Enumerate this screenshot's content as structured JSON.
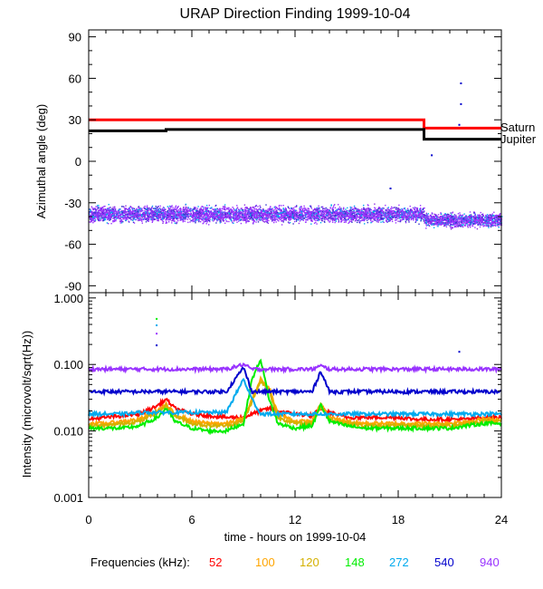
{
  "chart_data": [
    {
      "type": "scatter",
      "title": "URAP Direction Finding  1999-10-04",
      "ylabel": "Azimuthal angle (deg)",
      "xlim": [
        0,
        24
      ],
      "ylim": [
        -95,
        95
      ],
      "yticks": [
        "90",
        "60",
        "30",
        "0",
        "-30",
        "-60",
        "-90"
      ],
      "ytick_values": [
        90,
        60,
        30,
        0,
        -30,
        -60,
        -90
      ],
      "reference_lines": [
        {
          "name": "Saturn",
          "color": "#ff0000",
          "segments": [
            {
              "x": [
                0,
                19.5
              ],
              "y": 30
            },
            {
              "x": [
                19.5,
                24
              ],
              "y": 24
            }
          ]
        },
        {
          "name": "Jupiter",
          "color": "#000000",
          "segments": [
            {
              "x": [
                0,
                4.5
              ],
              "y": 22
            },
            {
              "x": [
                4.5,
                19.5
              ],
              "y": 23
            },
            {
              "x": [
                19.5,
                24
              ],
              "y": 16
            }
          ]
        }
      ],
      "scatter_bands": [
        {
          "x": [
            0,
            19.5
          ],
          "y_center": -38,
          "y_spread": 8
        },
        {
          "x": [
            19.5,
            24
          ],
          "y_center": -42,
          "y_spread": 7
        }
      ],
      "outliers": [
        {
          "x": 21.6,
          "y": 57
        },
        {
          "x": 21.6,
          "y": 42
        },
        {
          "x": 19.9,
          "y": 5
        },
        {
          "x": 21.5,
          "y": 27
        },
        {
          "x": 17.5,
          "y": -19
        }
      ]
    },
    {
      "type": "line",
      "xlabel": "time - hours on 1999-10-04",
      "ylabel": "Intensity (microvolt/sqrt(Hz))",
      "xlim": [
        0,
        24
      ],
      "xticks": [
        "0",
        "6",
        "12",
        "18",
        "24"
      ],
      "xtick_values": [
        0,
        6,
        12,
        18,
        24
      ],
      "yscale": "log",
      "ylim": [
        0.001,
        1.2
      ],
      "yticks": [
        "1.000",
        "0.100",
        "0.010",
        "0.001"
      ],
      "ytick_values": [
        1,
        0.1,
        0.01,
        0.001
      ],
      "x": [
        0,
        1,
        2,
        3,
        4,
        4.5,
        5,
        6,
        7,
        8,
        9,
        9.5,
        10,
        10.5,
        11,
        12,
        13,
        13.5,
        14,
        15,
        16,
        17,
        18,
        19,
        20,
        21,
        22,
        23,
        24
      ],
      "series": [
        {
          "name": "52",
          "color": "#ff0000",
          "values": [
            0.015,
            0.016,
            0.017,
            0.018,
            0.024,
            0.03,
            0.022,
            0.018,
            0.017,
            0.016,
            0.016,
            0.018,
            0.02,
            0.022,
            0.02,
            0.018,
            0.017,
            0.022,
            0.019,
            0.016,
            0.016,
            0.016,
            0.016,
            0.015,
            0.015,
            0.015,
            0.015,
            0.016,
            0.016
          ]
        },
        {
          "name": "100",
          "color": "#ffa500",
          "values": [
            0.013,
            0.013,
            0.014,
            0.015,
            0.02,
            0.025,
            0.018,
            0.014,
            0.013,
            0.013,
            0.015,
            0.03,
            0.06,
            0.045,
            0.018,
            0.014,
            0.014,
            0.025,
            0.016,
            0.014,
            0.013,
            0.013,
            0.013,
            0.013,
            0.013,
            0.013,
            0.014,
            0.015,
            0.015
          ]
        },
        {
          "name": "120",
          "color": "#d4b000",
          "values": [
            0.012,
            0.012,
            0.013,
            0.014,
            0.019,
            0.024,
            0.017,
            0.013,
            0.012,
            0.012,
            0.014,
            0.028,
            0.055,
            0.04,
            0.016,
            0.013,
            0.013,
            0.023,
            0.015,
            0.013,
            0.012,
            0.012,
            0.012,
            0.012,
            0.012,
            0.012,
            0.013,
            0.014,
            0.014
          ]
        },
        {
          "name": "148",
          "color": "#00ee00",
          "values": [
            0.011,
            0.011,
            0.011,
            0.012,
            0.016,
            0.022,
            0.014,
            0.011,
            0.01,
            0.01,
            0.013,
            0.06,
            0.12,
            0.03,
            0.013,
            0.011,
            0.012,
            0.025,
            0.014,
            0.012,
            0.011,
            0.011,
            0.011,
            0.011,
            0.011,
            0.011,
            0.012,
            0.013,
            0.013
          ]
        },
        {
          "name": "272",
          "color": "#00aaee",
          "values": [
            0.018,
            0.018,
            0.018,
            0.019,
            0.019,
            0.019,
            0.019,
            0.019,
            0.019,
            0.019,
            0.06,
            0.03,
            0.018,
            0.018,
            0.018,
            0.018,
            0.018,
            0.018,
            0.018,
            0.018,
            0.018,
            0.018,
            0.018,
            0.018,
            0.018,
            0.018,
            0.018,
            0.018,
            0.018
          ]
        },
        {
          "name": "540",
          "color": "#0000cc",
          "values": [
            0.039,
            0.039,
            0.039,
            0.039,
            0.039,
            0.039,
            0.039,
            0.039,
            0.039,
            0.039,
            0.09,
            0.039,
            0.039,
            0.039,
            0.039,
            0.039,
            0.039,
            0.08,
            0.039,
            0.039,
            0.039,
            0.039,
            0.039,
            0.039,
            0.039,
            0.039,
            0.039,
            0.039,
            0.039
          ]
        },
        {
          "name": "940",
          "color": "#9933ff",
          "values": [
            0.085,
            0.085,
            0.085,
            0.085,
            0.085,
            0.085,
            0.085,
            0.085,
            0.085,
            0.085,
            0.1,
            0.085,
            0.085,
            0.085,
            0.085,
            0.085,
            0.085,
            0.095,
            0.085,
            0.085,
            0.085,
            0.085,
            0.085,
            0.085,
            0.085,
            0.085,
            0.085,
            0.085,
            0.085
          ]
        }
      ],
      "spikes": [
        {
          "x": 3.9,
          "y": 0.5,
          "color": "#00ee00"
        },
        {
          "x": 3.9,
          "y": 0.4,
          "color": "#00aaee"
        },
        {
          "x": 3.9,
          "y": 0.3,
          "color": "#9933ff"
        },
        {
          "x": 3.9,
          "y": 0.2,
          "color": "#0000cc"
        },
        {
          "x": 21.5,
          "y": 0.16,
          "color": "#0000cc"
        }
      ]
    }
  ],
  "legend": {
    "label": "Frequencies (kHz):",
    "items": [
      {
        "text": "52",
        "color": "#ff0000"
      },
      {
        "text": "100",
        "color": "#ffa500"
      },
      {
        "text": "120",
        "color": "#d4b000"
      },
      {
        "text": "148",
        "color": "#00ee00"
      },
      {
        "text": "272",
        "color": "#00aaee"
      },
      {
        "text": "540",
        "color": "#0000cc"
      },
      {
        "text": "940",
        "color": "#9933ff"
      }
    ]
  }
}
